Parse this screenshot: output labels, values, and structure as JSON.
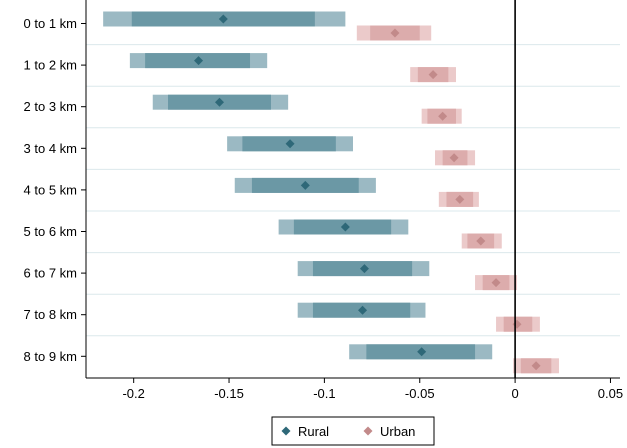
{
  "chart_data": {
    "type": "coefficient-plot",
    "title": "",
    "xlabel": "",
    "ylabel": "",
    "xlim": [
      -0.225,
      0.055
    ],
    "x_ticks": [
      -0.2,
      -0.15,
      -0.1,
      -0.05,
      0,
      0.05
    ],
    "x_tick_labels": [
      "-0.2",
      "-0.15",
      "-0.1",
      "-0.05",
      "0",
      "0.05"
    ],
    "reference_line_x": 0,
    "grid": "horizontal",
    "legend_position": "bottom",
    "categories": [
      "0 to 1 km",
      "1 to 2 km",
      "2 to 3 km",
      "3 to 4 km",
      "4 to 5 km",
      "5 to 6 km",
      "6 to 7 km",
      "7 to 8 km",
      "8 to 9 km"
    ],
    "series": [
      {
        "name": "Rural",
        "color": "#2e6878",
        "ci_outer_color": "#9bb9c3",
        "ci_inner_color": "#6b98a5",
        "estimates": [
          -0.153,
          -0.166,
          -0.155,
          -0.118,
          -0.11,
          -0.089,
          -0.079,
          -0.08,
          -0.049
        ],
        "ci_outer": [
          [
            -0.216,
            -0.089
          ],
          [
            -0.202,
            -0.13
          ],
          [
            -0.19,
            -0.119
          ],
          [
            -0.151,
            -0.085
          ],
          [
            -0.147,
            -0.073
          ],
          [
            -0.124,
            -0.056
          ],
          [
            -0.114,
            -0.045
          ],
          [
            -0.114,
            -0.047
          ],
          [
            -0.087,
            -0.012
          ]
        ],
        "ci_inner": [
          [
            -0.201,
            -0.105
          ],
          [
            -0.194,
            -0.139
          ],
          [
            -0.182,
            -0.128
          ],
          [
            -0.143,
            -0.094
          ],
          [
            -0.138,
            -0.082
          ],
          [
            -0.116,
            -0.065
          ],
          [
            -0.106,
            -0.054
          ],
          [
            -0.106,
            -0.055
          ],
          [
            -0.078,
            -0.021
          ]
        ]
      },
      {
        "name": "Urban",
        "color": "#c28a8a",
        "ci_outer_color": "#ebcaca",
        "ci_inner_color": "#dcacac",
        "estimates": [
          -0.063,
          -0.043,
          -0.038,
          -0.032,
          -0.029,
          -0.018,
          -0.01,
          0.001,
          0.011
        ],
        "ci_outer": [
          [
            -0.083,
            -0.044
          ],
          [
            -0.055,
            -0.031
          ],
          [
            -0.049,
            -0.028
          ],
          [
            -0.042,
            -0.021
          ],
          [
            -0.04,
            -0.019
          ],
          [
            -0.028,
            -0.007
          ],
          [
            -0.021,
            0.001
          ],
          [
            -0.01,
            0.013
          ],
          [
            -0.001,
            0.023
          ]
        ],
        "ci_inner": [
          [
            -0.076,
            -0.05
          ],
          [
            -0.051,
            -0.035
          ],
          [
            -0.046,
            -0.031
          ],
          [
            -0.038,
            -0.025
          ],
          [
            -0.036,
            -0.022
          ],
          [
            -0.025,
            -0.011
          ],
          [
            -0.017,
            -0.003
          ],
          [
            -0.006,
            0.009
          ],
          [
            0.003,
            0.019
          ]
        ]
      }
    ]
  },
  "legend": {
    "items": [
      {
        "label": "Rural",
        "color": "#2e6878"
      },
      {
        "label": "Urban",
        "color": "#c28a8a"
      }
    ]
  }
}
